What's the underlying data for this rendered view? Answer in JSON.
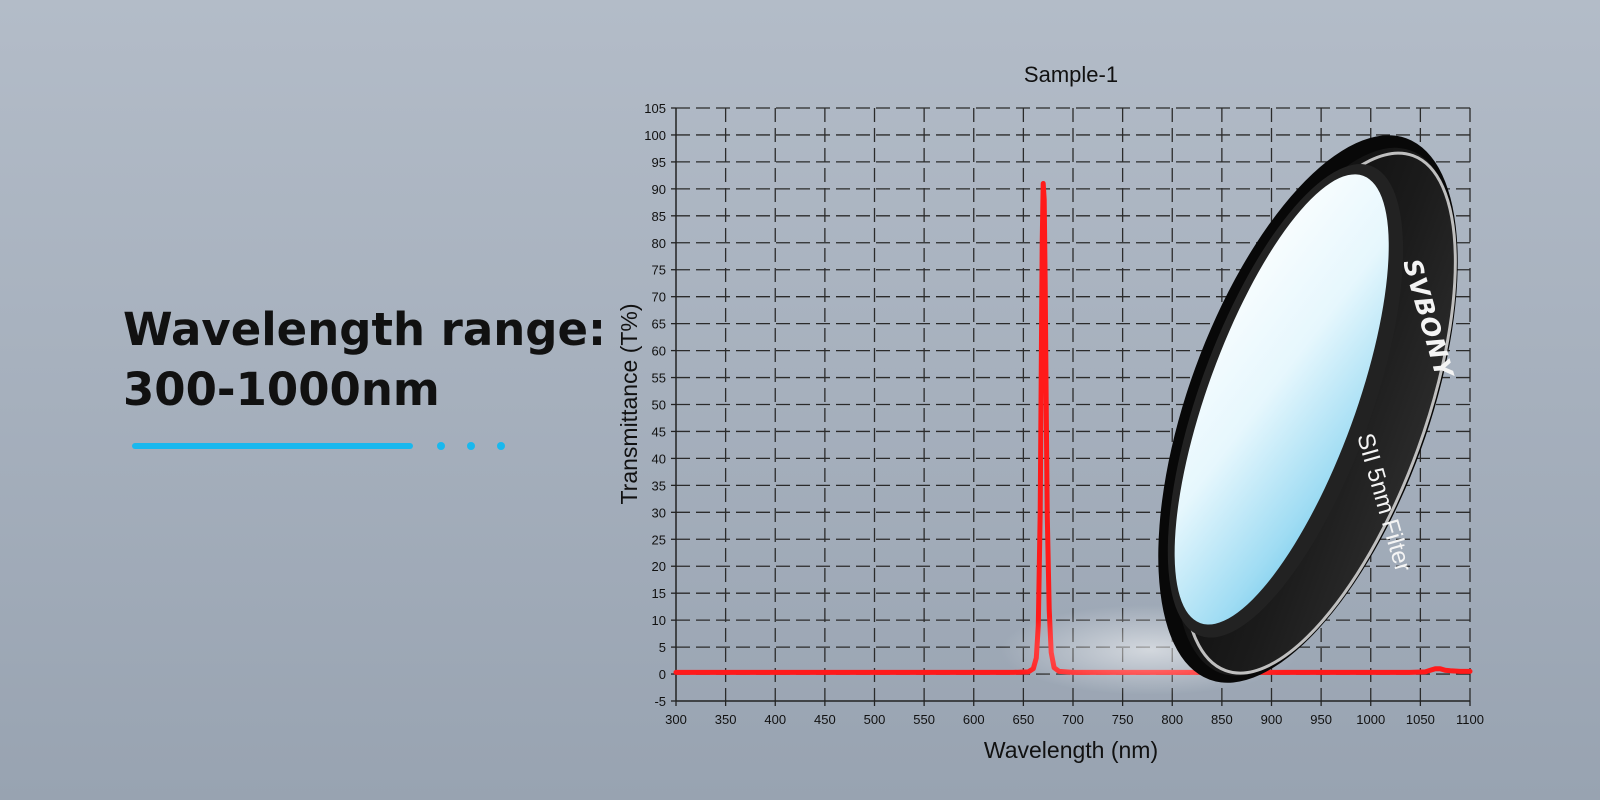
{
  "headline": {
    "line1": "Wavelength range:",
    "line2": "300-1000nm"
  },
  "accent_color": "#19b8ee",
  "curve_color": "#ff1a1a",
  "chart_data": {
    "type": "line",
    "title": "Sample-1",
    "xlabel": "Wavelength (nm)",
    "ylabel": "Transmittance (T%)",
    "xlim": [
      300,
      1100
    ],
    "ylim": [
      -5,
      105
    ],
    "xticks": [
      300,
      350,
      400,
      450,
      500,
      550,
      600,
      650,
      700,
      750,
      800,
      850,
      900,
      950,
      1000,
      1050,
      1100
    ],
    "yticks": [
      -5,
      0,
      5,
      10,
      15,
      20,
      25,
      30,
      35,
      40,
      45,
      50,
      55,
      60,
      65,
      70,
      75,
      80,
      85,
      90,
      95,
      100,
      105
    ],
    "grid": true,
    "series": [
      {
        "x": [
          300,
          350,
          400,
          450,
          500,
          550,
          600,
          640,
          655,
          660,
          663,
          665,
          667,
          668,
          669,
          670,
          671,
          672,
          673,
          674,
          676,
          678,
          681,
          686,
          700,
          750,
          800,
          850,
          900,
          950,
          1000,
          1040,
          1055,
          1060,
          1065,
          1070,
          1075,
          1080,
          1090,
          1100
        ],
        "y": [
          0.3,
          0.3,
          0.3,
          0.3,
          0.3,
          0.3,
          0.3,
          0.3,
          0.4,
          1,
          3,
          9,
          30,
          55,
          80,
          91,
          88,
          72,
          50,
          30,
          12,
          4,
          1.2,
          0.5,
          0.3,
          0.3,
          0.3,
          0.3,
          0.3,
          0.3,
          0.3,
          0.3,
          0.4,
          0.7,
          1,
          1,
          0.7,
          0.6,
          0.5,
          0.5
        ]
      }
    ]
  },
  "product": {
    "brand": "SVBONY",
    "label": "SII 5nm Filter"
  }
}
